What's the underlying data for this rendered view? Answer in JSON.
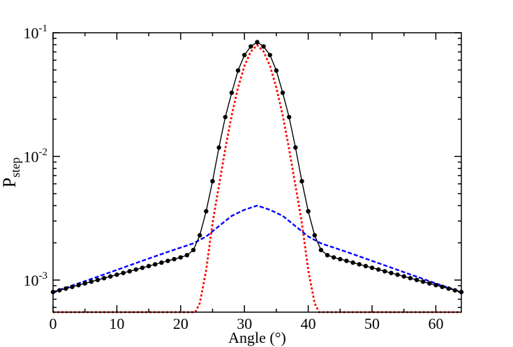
{
  "chart_data": {
    "type": "line",
    "title": "",
    "xlabel": "Angle (°)",
    "ylabel": {
      "main": "P",
      "sub": "step"
    },
    "xlim": [
      0,
      64
    ],
    "ylim": [
      0.00055,
      0.1
    ],
    "yscale": "log",
    "grid": false,
    "legend": "none",
    "x_ticks": [
      0,
      10,
      20,
      30,
      40,
      50,
      60
    ],
    "y_ticks": [
      {
        "value": 0.001,
        "base": "10",
        "exp": "-3"
      },
      {
        "value": 0.01,
        "base": "10",
        "exp": "-2"
      },
      {
        "value": 0.1,
        "base": "10",
        "exp": "-1"
      }
    ],
    "series": [
      {
        "color": "#000000",
        "style": "solid-with-markers",
        "x": [
          0,
          1,
          2,
          3,
          4,
          5,
          6,
          7,
          8,
          9,
          10,
          11,
          12,
          13,
          14,
          15,
          16,
          17,
          18,
          19,
          20,
          21,
          22,
          23,
          24,
          25,
          26,
          27,
          28,
          29,
          30,
          31,
          32,
          33,
          34,
          35,
          36,
          37,
          38,
          39,
          40,
          41,
          42,
          43,
          44,
          45,
          46,
          47,
          48,
          49,
          50,
          51,
          52,
          53,
          54,
          55,
          56,
          57,
          58,
          59,
          60,
          61,
          62,
          63,
          64
        ],
        "y": [
          0.0008,
          0.000826,
          0.000853,
          0.000881,
          0.00091,
          0.00094,
          0.000971,
          0.001003,
          0.001036,
          0.00107,
          0.001105,
          0.001141,
          0.001178,
          0.001217,
          0.001257,
          0.001298,
          0.00134,
          0.001384,
          0.00143,
          0.001476,
          0.001525,
          0.00159,
          0.00175,
          0.0023,
          0.0036,
          0.0063,
          0.0118,
          0.0208,
          0.0327,
          0.0495,
          0.066,
          0.0775,
          0.084,
          0.0775,
          0.066,
          0.0495,
          0.0327,
          0.0208,
          0.0118,
          0.0063,
          0.0036,
          0.0023,
          0.00175,
          0.00159,
          0.001525,
          0.001476,
          0.00143,
          0.001384,
          0.00134,
          0.001298,
          0.001257,
          0.001217,
          0.001178,
          0.001141,
          0.001105,
          0.00107,
          0.001036,
          0.001003,
          0.000971,
          0.00094,
          0.00091,
          0.000881,
          0.000853,
          0.000826,
          0.0008
        ]
      },
      {
        "color": "#0000ff",
        "style": "dashed",
        "x": [
          0,
          4,
          8,
          12,
          16,
          18,
          20,
          22,
          24,
          26,
          28,
          30,
          32,
          34,
          36,
          38,
          40,
          42,
          44,
          46,
          48,
          52,
          56,
          60,
          64
        ],
        "y": [
          0.0008,
          0.00094,
          0.00111,
          0.001315,
          0.001555,
          0.00169,
          0.00183,
          0.00198,
          0.00225,
          0.00273,
          0.0033,
          0.0037,
          0.004,
          0.0037,
          0.0033,
          0.00273,
          0.00225,
          0.00198,
          0.00183,
          0.00169,
          0.001555,
          0.001315,
          0.00111,
          0.00094,
          0.0008
        ]
      },
      {
        "color": "#ff0000",
        "style": "dotted",
        "x": [
          0,
          20,
          22.3,
          23,
          24,
          25,
          26,
          27,
          28,
          29,
          30,
          31,
          32,
          33,
          34,
          35,
          36,
          37,
          38,
          39,
          40,
          41,
          41.7,
          44,
          64
        ],
        "y": [
          0.00055,
          0.00055,
          0.00055,
          0.00065,
          0.0012,
          0.0029,
          0.0058,
          0.0115,
          0.0215,
          0.036,
          0.054,
          0.0705,
          0.0795,
          0.0705,
          0.054,
          0.036,
          0.0215,
          0.0115,
          0.0058,
          0.0029,
          0.0012,
          0.00065,
          0.00055,
          0.00055,
          0.00055
        ]
      }
    ]
  }
}
